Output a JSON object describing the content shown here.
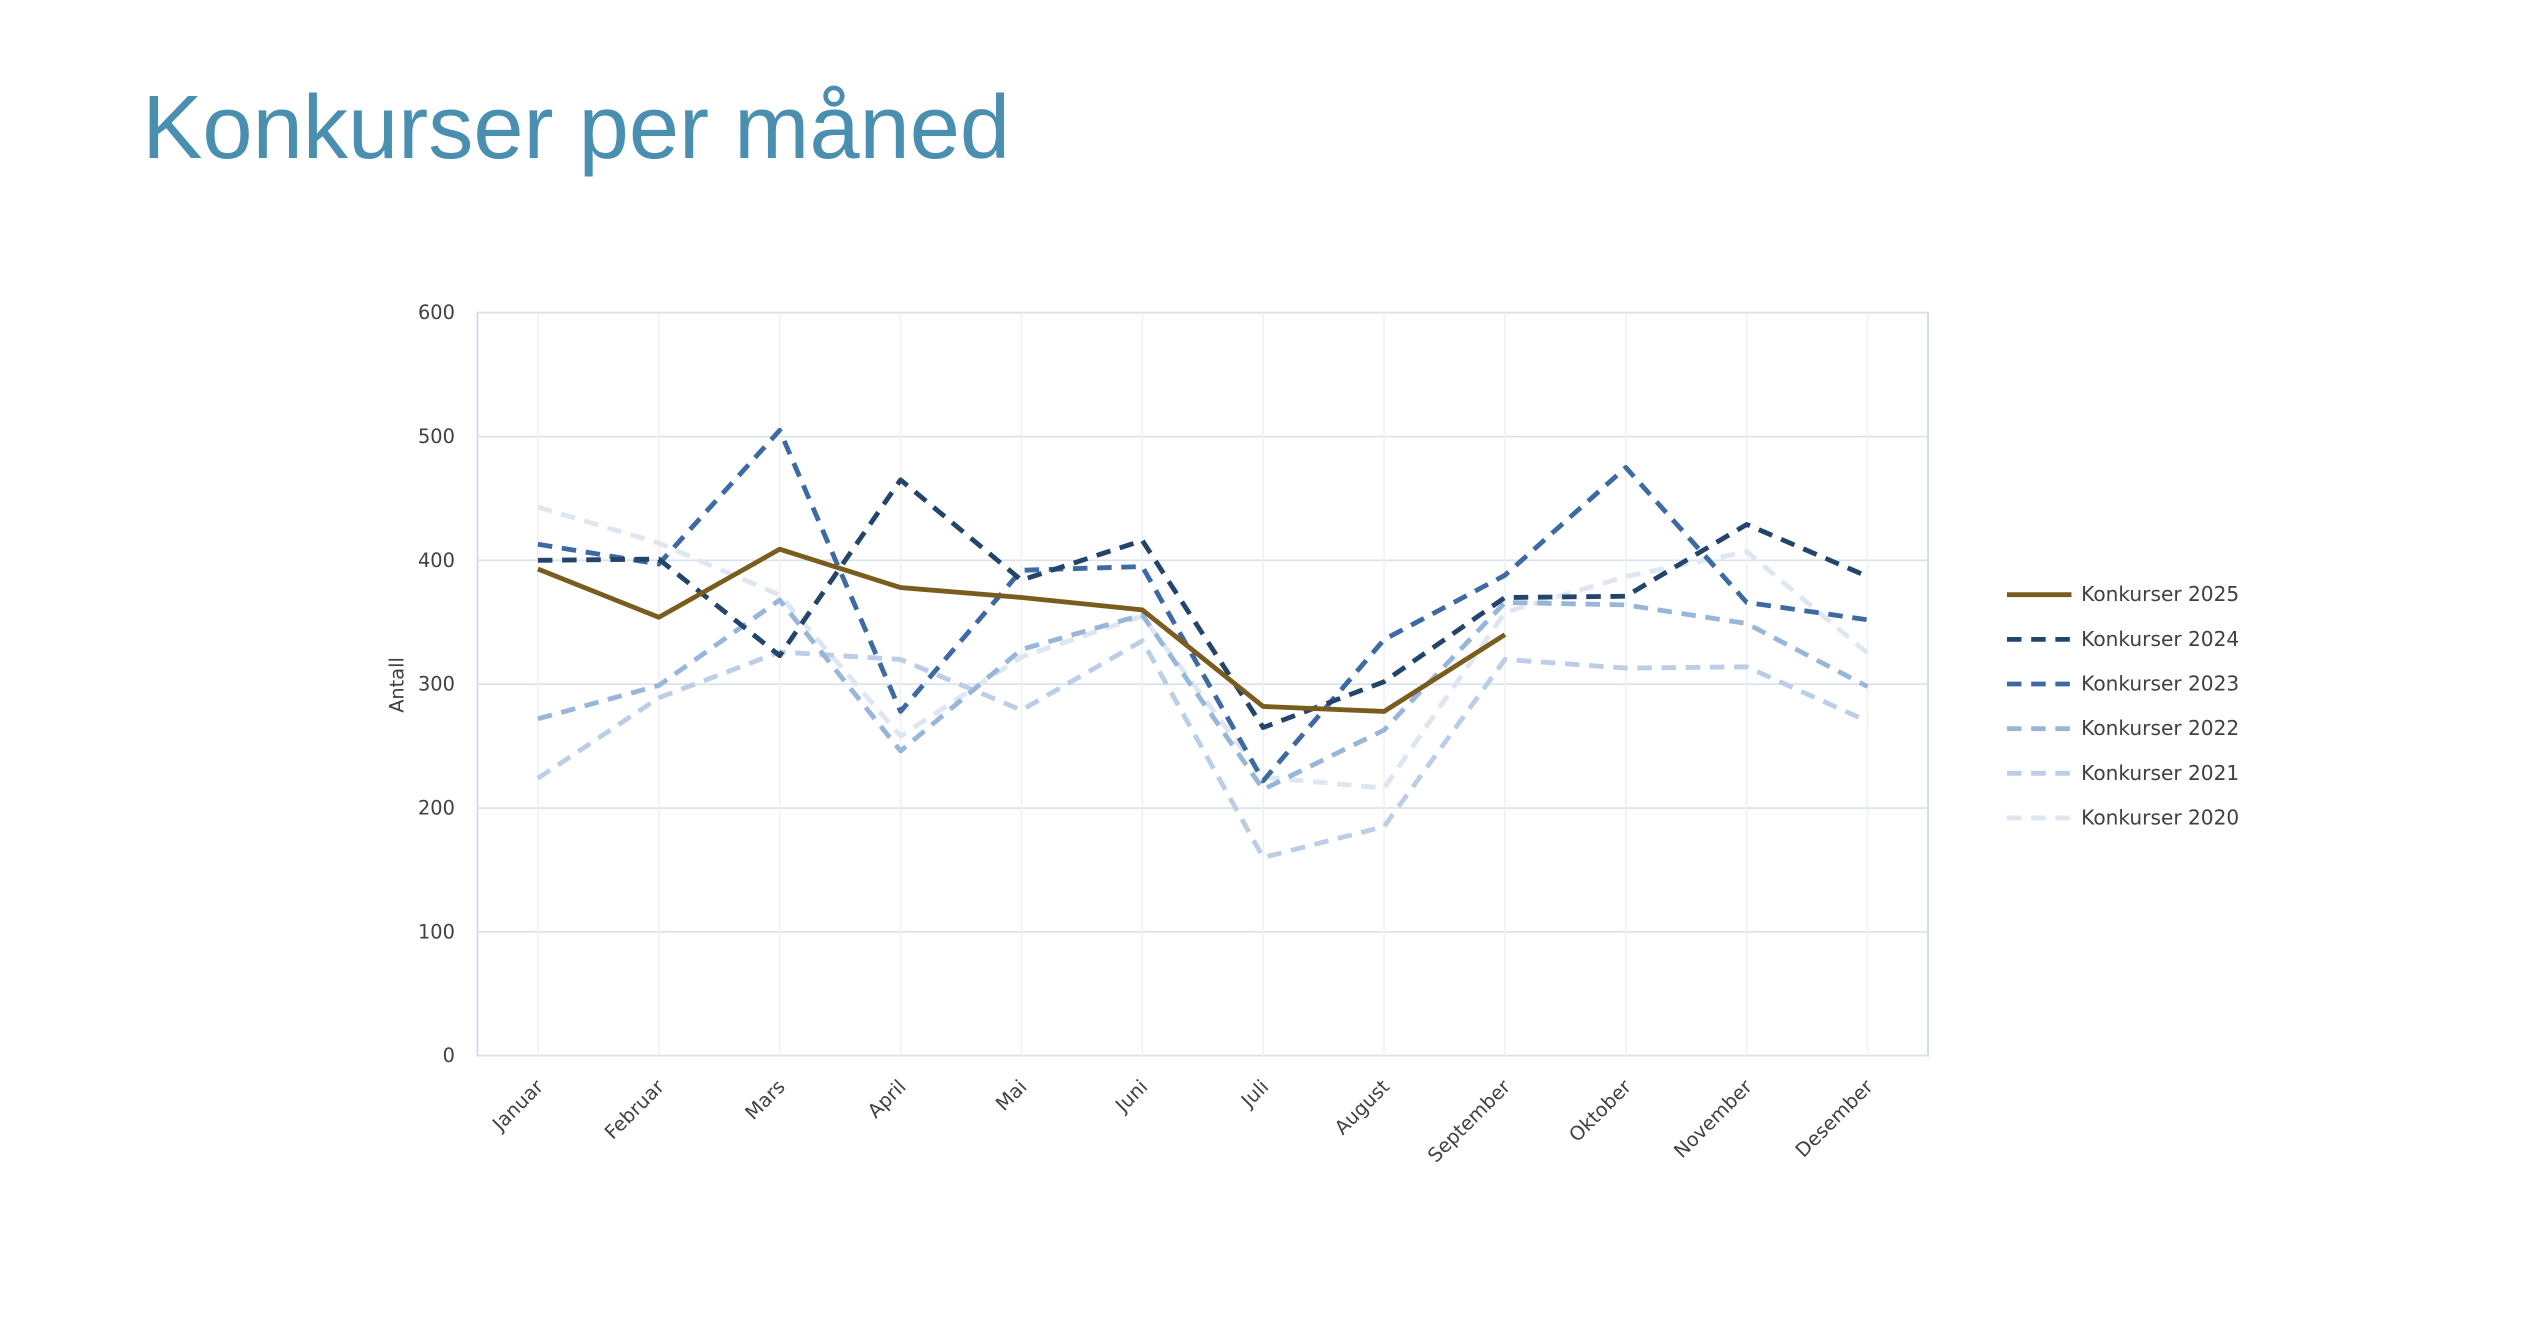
{
  "chart_data": {
    "type": "line",
    "title": "Konkurser per måned",
    "ylabel": "Antall",
    "categories": [
      "Januar",
      "Februar",
      "Mars",
      "April",
      "Mai",
      "Juni",
      "Juli",
      "August",
      "September",
      "Oktober",
      "November",
      "Desember"
    ],
    "ylim": [
      0,
      600
    ],
    "yticks": [
      0,
      100,
      200,
      300,
      400,
      500,
      600
    ],
    "grid": true,
    "legend": "right",
    "series": [
      {
        "name": "Konkurser 2025",
        "color": "#7a5c1e",
        "dashed": false,
        "values": [
          393,
          354,
          409,
          378,
          370,
          360,
          282,
          278,
          340,
          null,
          null,
          null
        ]
      },
      {
        "name": "Konkurser 2024",
        "color": "#23446b",
        "dashed": true,
        "values": [
          400,
          401,
          323,
          465,
          384,
          416,
          265,
          302,
          370,
          371,
          429,
          387
        ]
      },
      {
        "name": "Konkurser 2023",
        "color": "#3d6aa3",
        "dashed": true,
        "values": [
          413,
          397,
          505,
          278,
          392,
          395,
          222,
          336,
          388,
          475,
          366,
          352
        ]
      },
      {
        "name": "Konkurser 2022",
        "color": "#98b6d8",
        "dashed": true,
        "values": [
          272,
          299,
          368,
          246,
          328,
          356,
          215,
          263,
          366,
          364,
          349,
          298
        ]
      },
      {
        "name": "Konkurser 2021",
        "color": "#bccde6",
        "dashed": true,
        "values": [
          224,
          289,
          326,
          320,
          279,
          335,
          160,
          185,
          320,
          313,
          314,
          270
        ]
      },
      {
        "name": "Konkurser 2020",
        "color": "#dde6f1",
        "dashed": true,
        "values": [
          443,
          414,
          372,
          258,
          322,
          355,
          225,
          216,
          358,
          387,
          407,
          325
        ]
      }
    ]
  }
}
